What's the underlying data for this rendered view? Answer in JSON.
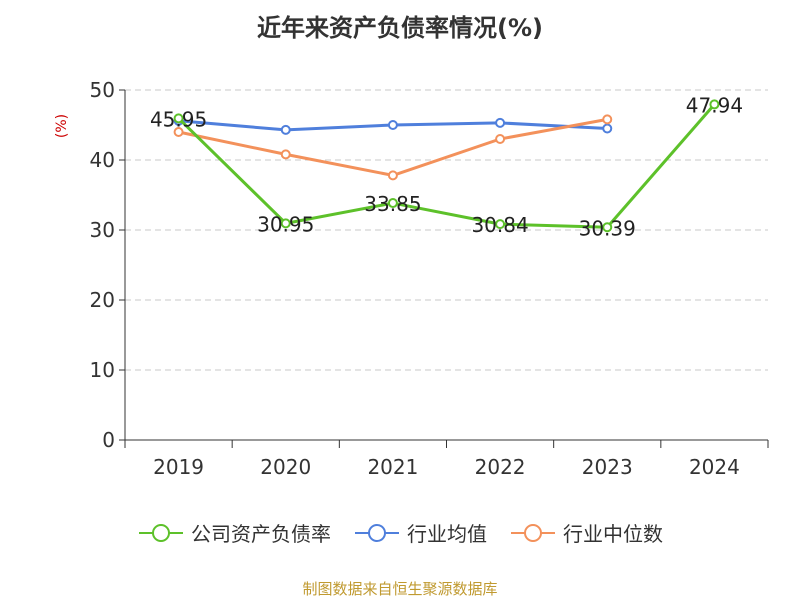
{
  "chart_data": {
    "type": "line",
    "title": "近年来资产负债率情况(%)",
    "ylabel": "(%)",
    "xlabel": "",
    "categories": [
      "2019",
      "2020",
      "2021",
      "2022",
      "2023",
      "2024"
    ],
    "ylim": [
      0,
      50
    ],
    "yticks": [
      0,
      10,
      20,
      30,
      40,
      50
    ],
    "grid": true,
    "legend_position": "bottom",
    "series": [
      {
        "name": "公司资产负债率",
        "color": "#5dc12a",
        "values": [
          45.95,
          30.95,
          33.85,
          30.84,
          30.39,
          47.94
        ],
        "labels": [
          "45.95",
          "30.95",
          "33.85",
          "30.84",
          "30.39",
          "47.94"
        ]
      },
      {
        "name": "行业均值",
        "color": "#4f7fdc",
        "values": [
          45.6,
          44.3,
          45.0,
          45.3,
          44.5,
          null
        ]
      },
      {
        "name": "行业中位数",
        "color": "#f3915b",
        "values": [
          44.0,
          40.8,
          37.8,
          43.0,
          45.8,
          null
        ]
      }
    ]
  },
  "source": "制图数据来自恒生聚源数据库"
}
